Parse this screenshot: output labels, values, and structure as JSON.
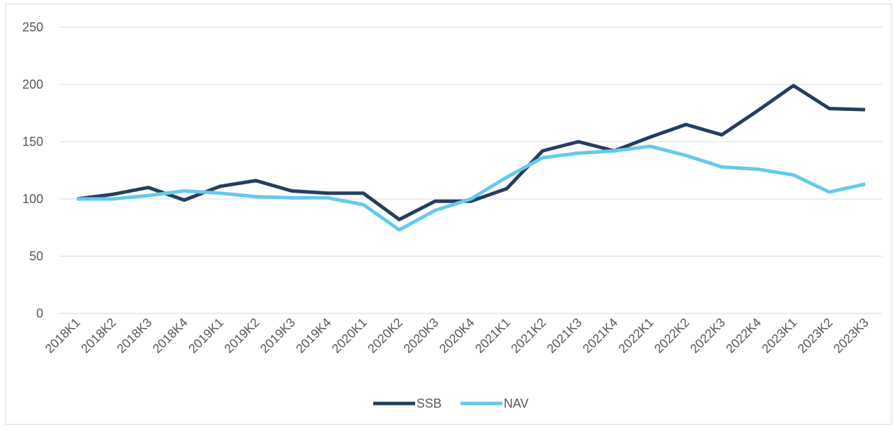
{
  "chart_data": {
    "type": "line",
    "categories": [
      "2018K1",
      "2018K2",
      "2018K3",
      "2018K4",
      "2019K1",
      "2019K2",
      "2019K3",
      "2019K4",
      "2020K1",
      "2020K2",
      "2020K3",
      "2020K4",
      "2021K1",
      "2021K2",
      "2021K3",
      "2021K4",
      "2022K1",
      "2022K2",
      "2022K3",
      "2022K4",
      "2023K1",
      "2023K2",
      "2023K3"
    ],
    "series": [
      {
        "name": "SSB",
        "color": "#243f5e",
        "values": [
          100,
          104,
          110,
          99,
          111,
          116,
          107,
          105,
          105,
          82,
          98,
          98,
          109,
          142,
          150,
          142,
          154,
          165,
          156,
          177,
          199,
          179,
          178
        ]
      },
      {
        "name": "NAV",
        "color": "#66c9ec",
        "values": [
          100,
          100,
          103,
          107,
          105,
          102,
          101,
          101,
          95,
          73,
          90,
          100,
          119,
          136,
          140,
          142,
          146,
          138,
          128,
          126,
          121,
          106,
          113
        ]
      }
    ],
    "ylim": [
      0,
      250
    ],
    "yticks": [
      0,
      50,
      100,
      150,
      200,
      250
    ],
    "grid": true,
    "legend": "bottom"
  }
}
